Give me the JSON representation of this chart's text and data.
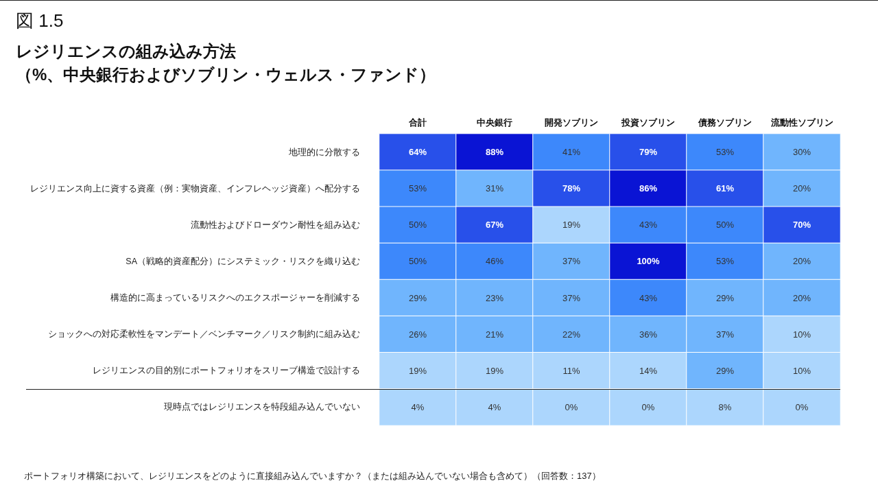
{
  "chart_data": {
    "type": "heatmap",
    "title": "図 1.5",
    "subtitle": "レジリエンスの組み込み方法（%、中央銀行およびソブリン・ウェルス・ファンド）",
    "categories": [
      "合計",
      "中央銀行",
      "開発ソブリン",
      "投資ソブリン",
      "債務ソブリン",
      "流動性ソブリン"
    ],
    "y_categories": [
      "地理的に分散する",
      "レジリエンス向上に資する資産（例：実物資産、インフレヘッジ資産）へ配分する",
      "流動性およびドローダウン耐性を組み込む",
      "SA（戦略的資産配分）にシステミック・リスクを織り込む",
      "構造的に高まっているリスクへのエクスポージャーを削減する",
      "ショックへの対応柔軟性をマンデート／ベンチマーク／リスク制約に組み込む",
      "レジリエンスの目的別にポートフォリオをスリーブ構造で設計する",
      "現時点ではレジリエンスを特段組み込んでいない"
    ],
    "cells": [
      [
        64,
        88,
        41,
        79,
        53,
        30
      ],
      [
        53,
        31,
        78,
        86,
        61,
        20
      ],
      [
        50,
        67,
        19,
        43,
        50,
        70
      ],
      [
        50,
        46,
        37,
        100,
        53,
        20
      ],
      [
        29,
        23,
        37,
        43,
        29,
        20
      ],
      [
        26,
        21,
        22,
        36,
        37,
        10
      ],
      [
        19,
        19,
        11,
        14,
        29,
        10
      ],
      [
        4,
        4,
        0,
        0,
        8,
        0
      ]
    ],
    "cell_labels": [
      [
        "64%",
        "88%",
        "41%",
        "79%",
        "53%",
        "30%"
      ],
      [
        "53%",
        "31%",
        "78%",
        "86%",
        "61%",
        "20%"
      ],
      [
        "50%",
        "67%",
        "19%",
        "43%",
        "50%",
        "70%"
      ],
      [
        "50%",
        "46%",
        "37%",
        "100%",
        "53%",
        "20%"
      ],
      [
        "29%",
        "23%",
        "37%",
        "43%",
        "29%",
        "20%"
      ],
      [
        "26%",
        "21%",
        "22%",
        "36%",
        "37%",
        "10%"
      ],
      [
        "19%",
        "19%",
        "11%",
        "14%",
        "29%",
        "10%"
      ],
      [
        "4%",
        "4%",
        "0%",
        "0%",
        "8%",
        "0%"
      ]
    ],
    "colors": [
      "#acd6fd",
      "#70b5fd",
      "#3d88fb",
      "#2850ea",
      "#0a14d4"
    ],
    "annotations": [
      "ポートフォリオ構築において、レジリエンスをどのように直接組み込んでいますか？（または組み込んでいない場合も含めて）（回答数：137）"
    ]
  }
}
